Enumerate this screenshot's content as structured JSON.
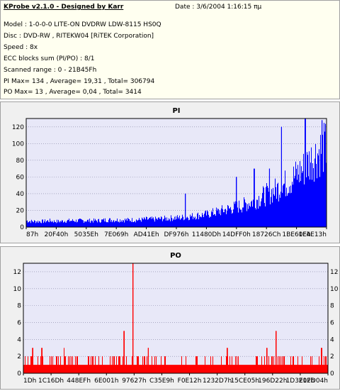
{
  "info": {
    "title": "KProbe v2.1.0 - Designed by Karr",
    "date": "Date : 3/6/2004 1:16:15 πμ",
    "lines": [
      "Model : 1-0-0-0 LITE-ON DVDRW LDW-8115   HS0Q",
      "Disc : DVD-RW , RITEKW04 [RiTEK Corporation]",
      "Speed : 8x",
      "ECC blocks sum (PI/PO) : 8/1",
      "Scanned range : 0 - 21B45Fh",
      "PI Max= 134 , Average= 19,31 , Total= 306794",
      "PO Max= 13 , Average= 0,04 , Total= 3414"
    ]
  },
  "colors": {
    "plot_bg": "#e8e8f8",
    "pi_series": "#0000ff",
    "po_series": "#ff0000",
    "grid": "#8080a0",
    "panel_bg": "#f0f0f0",
    "info_bg": "#fffff0"
  },
  "chart_data": [
    {
      "type": "bar",
      "title": "PI",
      "series_name": "PI",
      "ylim": [
        0,
        130
      ],
      "yticks": [
        0,
        20,
        40,
        60,
        80,
        100,
        120
      ],
      "xticks": [
        "87h",
        "20F40h",
        "5035Eh",
        "7E069h",
        "AD41Eh",
        "DF976h",
        "11480Dh",
        "14DFF0h",
        "18726Ch",
        "1BE60Eh",
        "1F4E13h"
      ],
      "grid": true,
      "baseline": [
        9,
        8,
        8,
        8,
        9,
        8,
        8,
        9,
        9,
        9,
        9,
        9,
        9,
        9,
        10,
        10,
        10,
        10,
        10,
        10,
        10,
        11,
        11,
        11,
        12,
        12,
        13,
        13,
        14,
        15,
        16,
        17,
        18,
        20,
        22,
        24,
        26,
        28,
        30,
        33,
        36,
        40,
        44,
        48,
        52,
        57,
        62,
        68,
        75,
        82,
        92,
        100,
        108,
        112
      ],
      "spikes": [
        [
          0.53,
          40
        ],
        [
          0.7,
          60
        ],
        [
          0.76,
          70
        ],
        [
          0.81,
          70
        ],
        [
          0.85,
          120
        ],
        [
          0.93,
          134
        ],
        [
          0.985,
          128
        ]
      ]
    },
    {
      "type": "bar",
      "title": "PO",
      "series_name": "PO",
      "ylim": [
        0,
        13
      ],
      "yticks": [
        0,
        2,
        4,
        6,
        8,
        10,
        12
      ],
      "xticks": [
        "1Dh",
        "1C16Dh",
        "448EFh",
        "6E001h",
        "97627h",
        "C35E9h",
        "F0E12h",
        "1232D7h",
        "15CE05h",
        "196D22h",
        "1D3E0Fh",
        "212D04h"
      ],
      "grid": true,
      "baseline_level": 1,
      "spikes": [
        [
          0.03,
          3
        ],
        [
          0.06,
          3
        ],
        [
          0.33,
          5
        ],
        [
          0.36,
          13
        ],
        [
          0.41,
          3
        ],
        [
          0.67,
          3
        ],
        [
          0.8,
          3
        ],
        [
          0.83,
          5
        ],
        [
          0.98,
          3
        ]
      ]
    }
  ]
}
